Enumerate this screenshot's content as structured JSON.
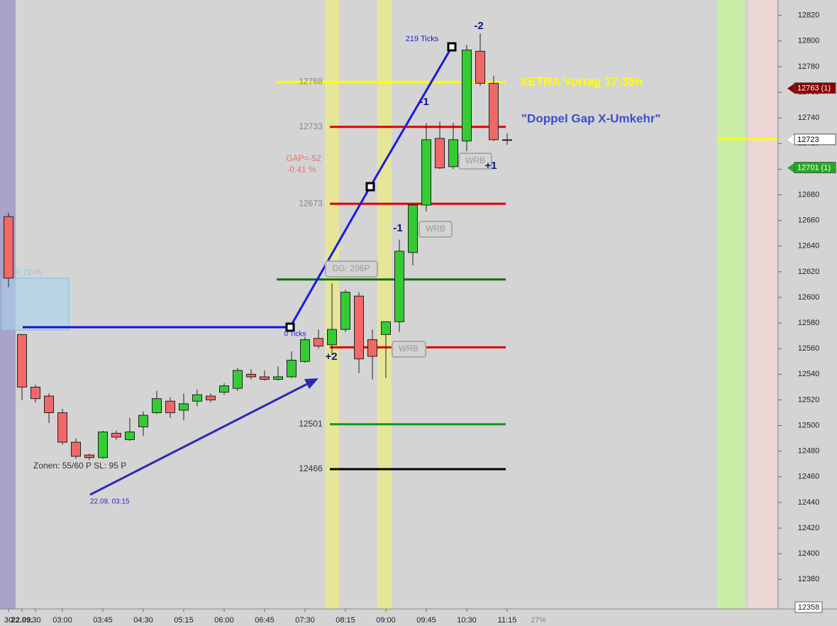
{
  "chart_data": {
    "type": "candlestick",
    "categories": [
      "30",
      "22.09.",
      ":30",
      null,
      "03:00",
      null,
      null,
      "03:45",
      null,
      null,
      "04:30",
      null,
      null,
      "05:15",
      null,
      null,
      "06:00",
      null,
      null,
      "06:45",
      null,
      null,
      "07:30",
      null,
      null,
      "08:15",
      null,
      null,
      "09:00",
      null,
      null,
      "09:45",
      null,
      null,
      "10:30",
      null,
      null,
      "11:15"
    ],
    "open": [
      12663,
      12571,
      12530,
      12523,
      12510,
      12487,
      12477,
      12475,
      12494,
      12489,
      12499,
      12510,
      12519,
      12512,
      12519,
      12523,
      12526,
      12529,
      12540,
      12538,
      12536,
      12538,
      12550,
      12568,
      12563,
      12575,
      12601,
      12567,
      12571,
      12581,
      12635,
      12672,
      12724,
      12702,
      12722,
      12792,
      12767,
      12723
    ],
    "high": [
      12666,
      12571,
      12532,
      12525,
      12513,
      12490,
      12478,
      12496,
      12496,
      12506,
      12511,
      12527,
      12522,
      12525,
      12528,
      12525,
      12533,
      12545,
      12544,
      12543,
      12546,
      12558,
      12569,
      12575,
      12611,
      12606,
      12604,
      12575,
      12581,
      12645,
      12673,
      12736,
      12737,
      12736,
      12797,
      12806,
      12773,
      12728
    ],
    "low": [
      12608,
      12520,
      12518,
      12502,
      12485,
      12474,
      12473,
      12474,
      12489,
      12488,
      12492,
      12509,
      12506,
      12504,
      12515,
      12518,
      12524,
      12527,
      12536,
      12535,
      12535,
      12537,
      12549,
      12560,
      12555,
      12573,
      12541,
      12536,
      12537,
      12573,
      12625,
      12667,
      12700,
      12700,
      12714,
      12765,
      12722,
      12719
    ],
    "close": [
      12615,
      12530,
      12521,
      12510,
      12487,
      12476,
      12475,
      12495,
      12491,
      12495,
      12508,
      12521,
      12510,
      12517,
      12524,
      12520,
      12531,
      12543,
      12538,
      12536,
      12538,
      12551,
      12567,
      12562,
      12575,
      12604,
      12552,
      12554,
      12581,
      12636,
      12672,
      12723,
      12701,
      12723,
      12793,
      12767,
      12723,
      12723
    ],
    "up_color": "#33cc33",
    "down_color": "#f06868",
    "ylim": [
      12358,
      12832
    ],
    "yticks": [
      12380,
      12400,
      12420,
      12440,
      12460,
      12480,
      12500,
      12520,
      12540,
      12560,
      12580,
      12600,
      12620,
      12640,
      12660,
      12680,
      12700,
      12720,
      12740,
      12760,
      12780,
      12800,
      12820
    ],
    "levels": [
      {
        "value": 12768,
        "color": "#ffff00",
        "labeled": true
      },
      {
        "value": 12733,
        "color": "#e00000",
        "labeled": true
      },
      {
        "value": 12673,
        "color": "#e00000",
        "labeled": true
      },
      {
        "value": 12614,
        "color": "#107010",
        "labeled": false
      },
      {
        "value": 12561,
        "color": "#e00000",
        "labeled": false
      },
      {
        "value": 12501,
        "color": "#119911",
        "labeled": true
      },
      {
        "value": 12466,
        "color": "#000000",
        "labeled": true
      }
    ],
    "price_markers": [
      {
        "value": 12763,
        "label": "12763 (1)",
        "color": "#8b0000"
      },
      {
        "value": 12723,
        "label": "12723",
        "color": "#ffffff"
      },
      {
        "value": 12701,
        "label": "12701 (1)",
        "color": "#22aa22"
      }
    ],
    "annotations": [
      "219 Ticks",
      "0 Ticks",
      "GAP=-52",
      "-0.41 %",
      "DG: 206P",
      "WRB",
      "WRB",
      "WRB",
      "-2",
      "-1",
      "-1",
      "+1",
      "+2",
      "XETRA Vortag 17:35h",
      "\"Doppel Gap X-Umkehr\"",
      "Zonen: 55/60 P SL: 95 P",
      "22.09. 03:15",
      "27%",
      "0: 21:45"
    ]
  }
}
